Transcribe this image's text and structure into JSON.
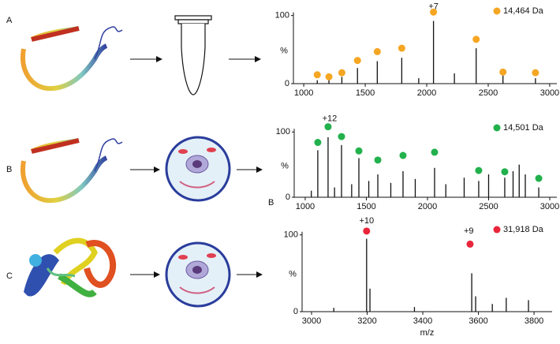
{
  "panel_labels": [
    "A",
    "B",
    "C"
  ],
  "side_label": "B",
  "chart_data": [
    {
      "type": "spectrum",
      "x": [
        1110,
        1205,
        1310,
        1437,
        1598,
        1797,
        1935,
        2055,
        2225,
        2402,
        2620,
        2884
      ],
      "values": [
        5,
        8,
        10,
        23,
        33,
        38,
        8,
        92,
        15,
        52,
        12,
        8
      ],
      "series": [
        {
          "name": "14,464 Da",
          "color": "#f5a623",
          "x": [
            1110,
            1205,
            1310,
            1437,
            1598,
            1797,
            2055,
            2402,
            2620,
            2884
          ],
          "values": [
            13,
            10,
            16,
            34,
            47,
            52,
            105,
            65,
            17,
            16
          ]
        }
      ],
      "xlim": [
        916,
        3058
      ],
      "xticks": [
        1000,
        1500,
        2000,
        2500,
        3000
      ],
      "ylim": [
        0,
        110
      ],
      "yticks": [
        0,
        100
      ],
      "ylabel": "%",
      "annotations": [
        {
          "text": "+7",
          "x": 2055,
          "y": 113
        }
      ]
    },
    {
      "type": "spectrum",
      "x": [
        1050,
        1103,
        1187,
        1240,
        1297,
        1380,
        1439,
        1520,
        1594,
        1700,
        1800,
        1900,
        2058,
        2150,
        2300,
        2419,
        2500,
        2632,
        2700,
        2750,
        2800,
        2910
      ],
      "values": [
        10,
        72,
        92,
        15,
        80,
        20,
        60,
        25,
        35,
        22,
        40,
        28,
        45,
        20,
        30,
        25,
        35,
        30,
        40,
        50,
        35,
        15
      ],
      "series": [
        {
          "name": "14,501 Da",
          "color": "#22b14c",
          "x": [
            1103,
            1187,
            1297,
            1439,
            1594,
            1800,
            2058,
            2419,
            2632,
            2910
          ],
          "values": [
            84,
            108,
            93,
            71,
            57,
            64,
            69,
            41,
            39,
            29
          ]
        }
      ],
      "xlim": [
        910,
        3058
      ],
      "xticks": [
        1000,
        1500,
        2000,
        2500,
        3000
      ],
      "ylim": [
        0,
        110
      ],
      "yticks": [
        0,
        100
      ],
      "ylabel": "%",
      "annotations": [
        {
          "text": "+12",
          "x": 1200,
          "y": 120
        }
      ]
    },
    {
      "type": "spectrum",
      "x": [
        3080,
        3198,
        3210,
        3370,
        3576,
        3590,
        3650,
        3700,
        3780
      ],
      "values": [
        5,
        95,
        30,
        6,
        50,
        20,
        10,
        18,
        15
      ],
      "series": [
        {
          "name": "31,918 Da",
          "color": "#e8253a",
          "x": [
            3198,
            3570
          ],
          "values": [
            105,
            88
          ]
        }
      ],
      "xlim": [
        2966,
        3865
      ],
      "xticks": [
        3000,
        3200,
        3400,
        3600,
        3800
      ],
      "ylim": [
        0,
        110
      ],
      "yticks": [
        0,
        100
      ],
      "ylabel": "%",
      "xlabel": "m/z",
      "annotations": [
        {
          "text": "+10",
          "x": 3198,
          "y": 118
        },
        {
          "text": "+9",
          "x": 3565,
          "y": 105
        }
      ]
    }
  ]
}
